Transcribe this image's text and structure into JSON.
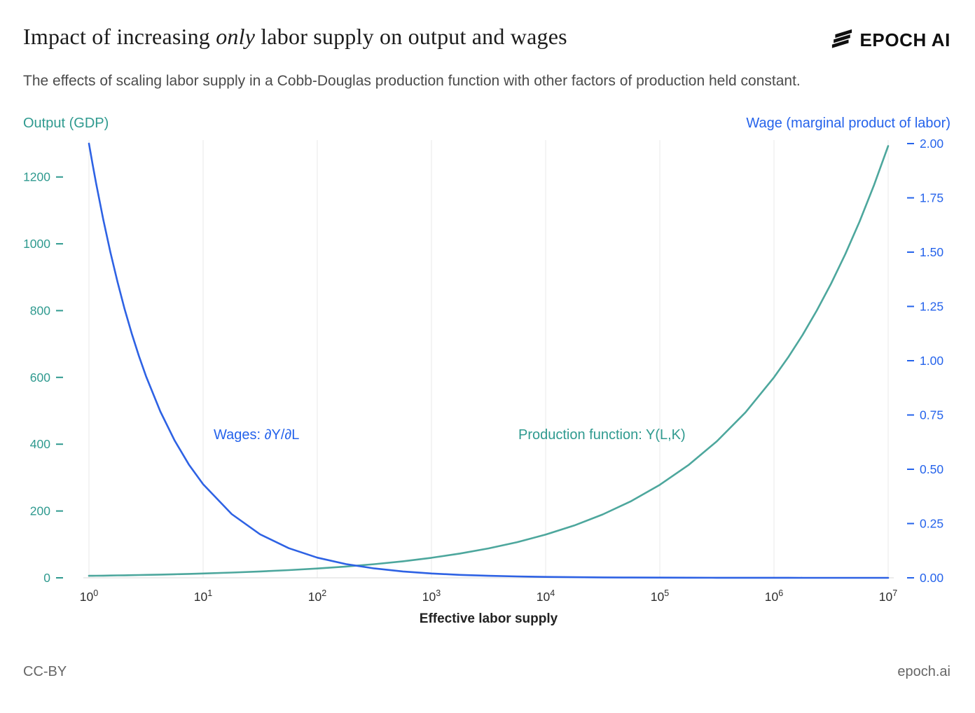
{
  "header": {
    "title_pre": "Impact of increasing ",
    "title_italic": "only",
    "title_post": " labor supply on output and wages",
    "brand": "EPOCH AI"
  },
  "subtitle": "The effects of scaling labor supply in a Cobb-Douglas production function with other factors of production held constant.",
  "footer": {
    "license": "CC-BY",
    "site": "epoch.ai"
  },
  "chart_data": {
    "type": "line",
    "x_scale": "log10",
    "xlabel": "Effective labor supply",
    "x_tick_base": "10",
    "x_tick_exponents": [
      "0",
      "1",
      "2",
      "3",
      "4",
      "5",
      "6",
      "7"
    ],
    "left_axis": {
      "label": "Output (GDP)",
      "color": "#2f9a8f",
      "ticks": [
        0,
        200,
        400,
        600,
        800,
        1000,
        1200
      ],
      "range": [
        0,
        1300
      ]
    },
    "right_axis": {
      "label": "Wage (marginal product of labor)",
      "color": "#2563eb",
      "ticks": [
        "0.00",
        "0.25",
        "0.50",
        "0.75",
        "1.00",
        "1.25",
        "1.50",
        "1.75",
        "2.00"
      ],
      "range": [
        0,
        2
      ]
    },
    "x_log10": [
      0,
      0.03125,
      0.0625,
      0.125,
      0.1875,
      0.25,
      0.3125,
      0.375,
      0.4375,
      0.5,
      0.625,
      0.75,
      0.875,
      1,
      1.25,
      1.5,
      1.75,
      2,
      2.25,
      2.5,
      2.75,
      3,
      3.25,
      3.5,
      3.75,
      4,
      4.25,
      4.5,
      4.75,
      5,
      5.25,
      5.5,
      5.75,
      6,
      6.125,
      6.25,
      6.375,
      6.5,
      6.625,
      6.75,
      6.875,
      7
    ],
    "series": [
      {
        "name": "Production function: Y(L,K)",
        "axis": "left",
        "color": "#4da79d",
        "values": [
          6,
          6.1,
          6.3,
          6.6,
          6.9,
          7.3,
          7.6,
          8,
          8.4,
          8.8,
          9.7,
          10.7,
          11.7,
          12.9,
          15.7,
          19,
          23,
          27.9,
          33.7,
          40.9,
          49.5,
          60,
          72.7,
          88.1,
          106.7,
          129.3,
          156.6,
          189.7,
          229.9,
          278.5,
          337.4,
          408.8,
          495.2,
          600,
          660.4,
          726.9,
          800.1,
          880.7,
          969.4,
          1067,
          1174.4,
          1292.6
        ]
      },
      {
        "name": "Wages: ∂Y/∂L",
        "axis": "right",
        "color": "#2e62e4",
        "values": [
          2,
          1.9064,
          1.817,
          1.6508,
          1.4998,
          1.3626,
          1.2379,
          1.1247,
          1.0219,
          0.9283,
          0.7662,
          0.6325,
          0.522,
          0.4309,
          0.2936,
          0.2,
          0.1363,
          0.0928,
          0.0632,
          0.0431,
          0.0294,
          0.02,
          0.0136,
          0.0093,
          0.0063,
          0.0043,
          0.0029,
          0.002,
          0.0014,
          0.0009,
          0.0006,
          0.0004,
          0.0003,
          0.0002,
          0.00017,
          0.00014,
          0.00011,
          9e-05,
          8e-05,
          6e-05,
          5e-05,
          4e-05
        ]
      }
    ]
  }
}
